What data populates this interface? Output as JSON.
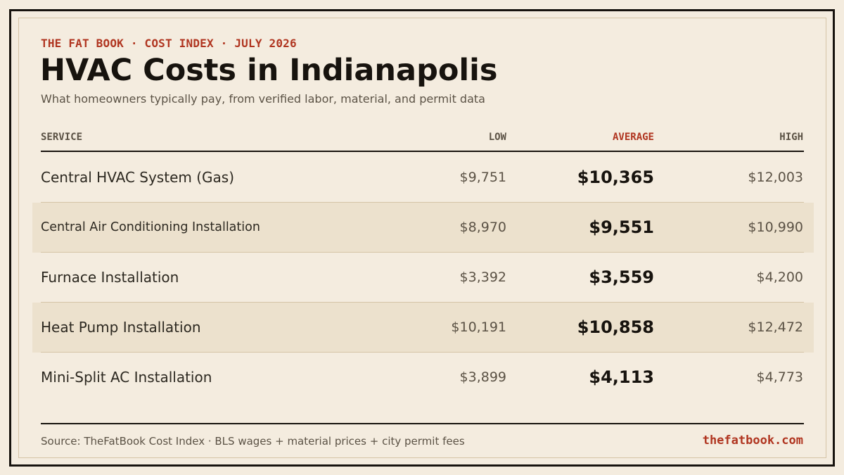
{
  "header": {
    "kicker": "THE FAT BOOK · COST INDEX · JULY 2026",
    "title": "HVAC Costs in Indianapolis",
    "subtitle": "What homeowners typically pay, from verified labor, material, and permit data"
  },
  "table": {
    "columns": {
      "service": "SERVICE",
      "low": "LOW",
      "average": "AVERAGE",
      "high": "HIGH"
    },
    "rows": [
      {
        "service": "Central HVAC System (Gas)",
        "low": "$9,751",
        "average": "$10,365",
        "high": "$12,003"
      },
      {
        "service": "Central Air Conditioning Installation",
        "low": "$8,970",
        "average": "$9,551",
        "high": "$10,990"
      },
      {
        "service": "Furnace Installation",
        "low": "$3,392",
        "average": "$3,559",
        "high": "$4,200"
      },
      {
        "service": "Heat Pump Installation",
        "low": "$10,191",
        "average": "$10,858",
        "high": "$12,472"
      },
      {
        "service": "Mini-Split AC Installation",
        "low": "$3,899",
        "average": "$4,113",
        "high": "$4,773"
      }
    ]
  },
  "footer": {
    "source": "Source: TheFatBook Cost Index · BLS wages + material prices + city permit fees",
    "site": "thefatbook.com"
  },
  "colors": {
    "background": "#f4ecdf",
    "accent": "#b03520",
    "ink": "#17130e",
    "shaded_row": "#ece1cd"
  }
}
